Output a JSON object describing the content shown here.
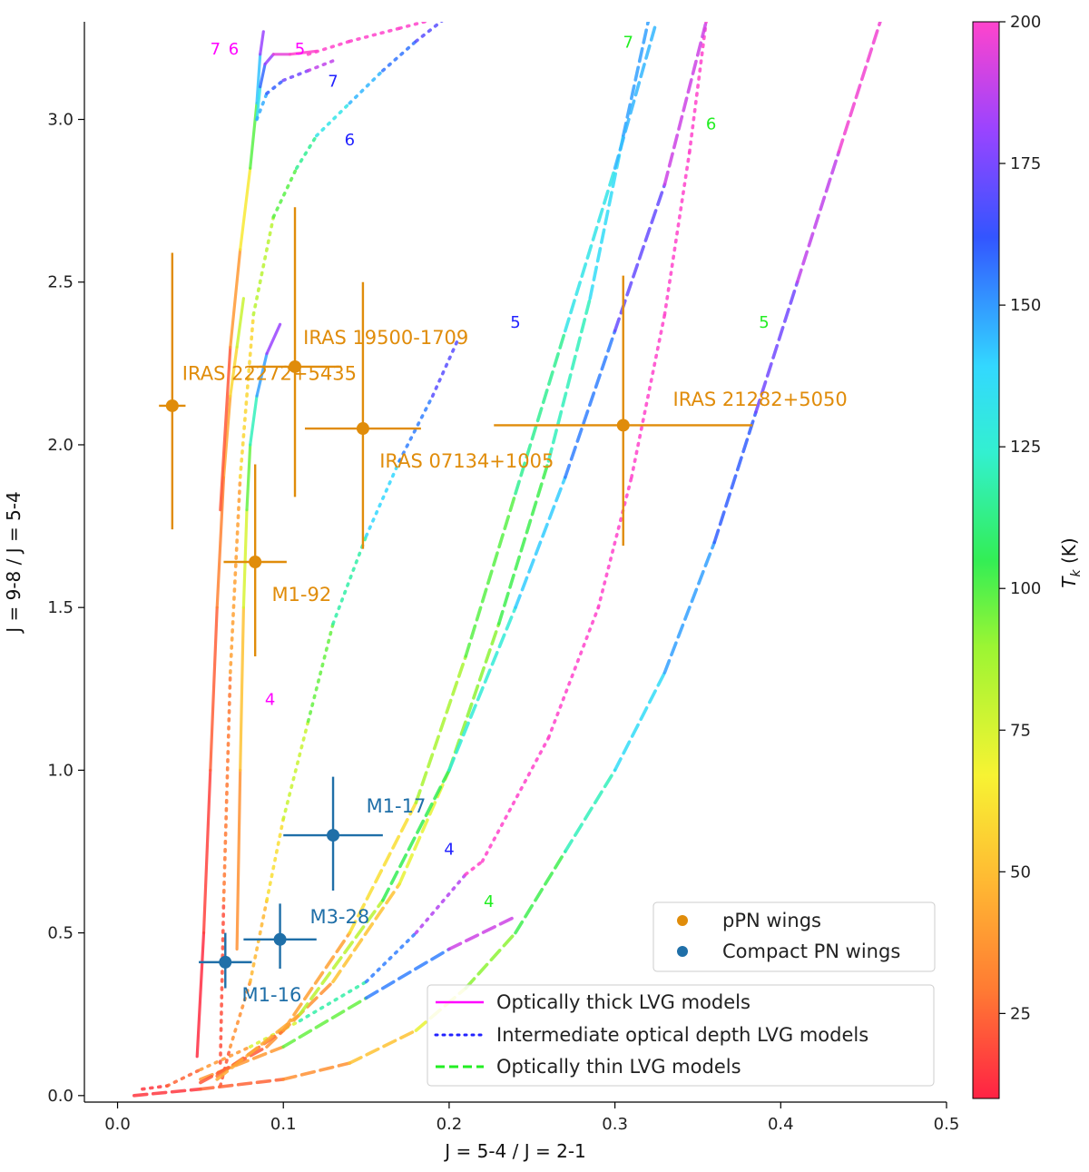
{
  "chart_data": {
    "type": "line",
    "xlabel": "J = 5-4 / J = 2-1",
    "ylabel": "J = 9-8 / J = 5-4",
    "xlim": [
      -0.02,
      0.5
    ],
    "ylim": [
      -0.02,
      3.3
    ],
    "xticks": [
      0.0,
      0.1,
      0.2,
      0.3,
      0.4,
      0.5
    ],
    "xtick_labels": [
      "0.0",
      "0.1",
      "0.2",
      "0.3",
      "0.4",
      "0.5"
    ],
    "yticks": [
      0.0,
      0.5,
      1.0,
      1.5,
      2.0,
      2.5,
      3.0
    ],
    "ytick_labels": [
      "0.0",
      "0.5",
      "1.0",
      "1.5",
      "2.0",
      "2.5",
      "3.0"
    ],
    "colorbar": {
      "label": "T_k (K)",
      "label_main": "T",
      "label_sub": "k",
      "label_unit": " (K)",
      "min": 10,
      "max": 200,
      "ticks": [
        25,
        50,
        75,
        100,
        125,
        150,
        175,
        200
      ],
      "tick_labels": [
        "25",
        "50",
        "75",
        "100",
        "125",
        "150",
        "175",
        "200"
      ]
    },
    "legend": {
      "location": "lower-right",
      "points": [
        {
          "label": "pPN wings",
          "color": "#E08C0A"
        },
        {
          "label": "Compact PN wings",
          "color": "#1F6FA8"
        }
      ],
      "lines": [
        {
          "label": "Optically thick LVG models",
          "style": "solid",
          "color": "#FF00FF"
        },
        {
          "label": "Intermediate optical depth LVG models",
          "style": "dotted",
          "color": "#2222FF"
        },
        {
          "label": "Optically thin LVG models",
          "style": "dashed",
          "color": "#22EE22"
        }
      ]
    },
    "series": [
      {
        "name": "Optically thick, log n = 4",
        "style": "solid",
        "points": [
          [
            0.048,
            0.12
          ],
          [
            0.052,
            0.5
          ],
          [
            0.056,
            1.0
          ],
          [
            0.06,
            1.5
          ],
          [
            0.064,
            1.9
          ],
          [
            0.068,
            2.15
          ],
          [
            0.072,
            2.3
          ],
          [
            0.076,
            2.45
          ]
        ],
        "temps": [
          10,
          15,
          20,
          28,
          38,
          50,
          65,
          80
        ]
      },
      {
        "name": "Optically thick, log n = 5",
        "style": "solid",
        "points": [
          [
            0.072,
            0.45
          ],
          [
            0.074,
            1.0
          ],
          [
            0.076,
            1.5
          ],
          [
            0.078,
            1.8
          ],
          [
            0.08,
            2.0
          ],
          [
            0.084,
            2.15
          ],
          [
            0.09,
            2.28
          ],
          [
            0.098,
            2.37
          ]
        ],
        "temps": [
          30,
          45,
          60,
          80,
          100,
          125,
          160,
          200
        ]
      },
      {
        "name": "Optically thick, log n = 6",
        "style": "solid",
        "points": [
          [
            0.062,
            1.8
          ],
          [
            0.068,
            2.3
          ],
          [
            0.074,
            2.6
          ],
          [
            0.08,
            2.85
          ],
          [
            0.084,
            3.05
          ],
          [
            0.086,
            3.2
          ],
          [
            0.088,
            3.27
          ]
        ],
        "temps": [
          15,
          30,
          50,
          75,
          110,
          160,
          200
        ]
      },
      {
        "name": "Optically thick, log n = 7",
        "style": "solid",
        "points": [
          [
            0.084,
            3.0
          ],
          [
            0.086,
            3.1
          ],
          [
            0.089,
            3.17
          ],
          [
            0.094,
            3.2
          ],
          [
            0.104,
            3.2
          ],
          [
            0.12,
            3.21
          ]
        ],
        "temps": [
          110,
          140,
          170,
          190,
          200,
          200
        ]
      },
      {
        "name": "Intermediate, log n = 4",
        "style": "dotted",
        "points": [
          [
            0.015,
            0.02
          ],
          [
            0.03,
            0.03
          ],
          [
            0.05,
            0.08
          ],
          [
            0.08,
            0.15
          ],
          [
            0.11,
            0.23
          ],
          [
            0.15,
            0.35
          ],
          [
            0.18,
            0.5
          ],
          [
            0.21,
            0.68
          ],
          [
            0.22,
            0.72
          ]
        ],
        "temps": [
          10,
          20,
          30,
          50,
          90,
          130,
          170,
          200,
          200
        ]
      },
      {
        "name": "Intermediate, log n = 5",
        "style": "dotted",
        "points": [
          [
            0.062,
            0.03
          ],
          [
            0.068,
            0.15
          ],
          [
            0.08,
            0.35
          ],
          [
            0.09,
            0.6
          ],
          [
            0.1,
            0.85
          ],
          [
            0.115,
            1.15
          ],
          [
            0.13,
            1.45
          ],
          [
            0.15,
            1.72
          ],
          [
            0.17,
            1.95
          ],
          [
            0.19,
            2.15
          ],
          [
            0.205,
            2.32
          ]
        ],
        "temps": [
          15,
          30,
          45,
          55,
          65,
          80,
          100,
          120,
          140,
          160,
          175
        ]
      },
      {
        "name": "Intermediate, log n = 6",
        "style": "dotted",
        "points": [
          [
            0.062,
            0.1
          ],
          [
            0.064,
            0.6
          ],
          [
            0.068,
            1.3
          ],
          [
            0.074,
            1.9
          ],
          [
            0.082,
            2.4
          ],
          [
            0.094,
            2.7
          ],
          [
            0.108,
            2.85
          ],
          [
            0.12,
            2.95
          ],
          [
            0.14,
            3.05
          ]
        ],
        "temps": [
          15,
          25,
          35,
          50,
          65,
          85,
          100,
          115,
          130
        ]
      },
      {
        "name": "Intermediate, log n = 7",
        "style": "dotted",
        "points": [
          [
            0.084,
            3.0
          ],
          [
            0.09,
            3.08
          ],
          [
            0.1,
            3.12
          ],
          [
            0.115,
            3.15
          ],
          [
            0.13,
            3.18
          ]
        ],
        "temps": [
          130,
          150,
          165,
          180,
          195
        ]
      },
      {
        "name": "Intermediate, upper, log n = 6",
        "style": "dotted",
        "points": [
          [
            0.14,
            3.05
          ],
          [
            0.16,
            3.15
          ],
          [
            0.18,
            3.24
          ],
          [
            0.2,
            3.32
          ]
        ],
        "temps": [
          130,
          145,
          160,
          175
        ]
      },
      {
        "name": "Intermediate, upper, log n = 5",
        "style": "dotted",
        "points": [
          [
            0.115,
            3.2
          ],
          [
            0.14,
            3.24
          ],
          [
            0.17,
            3.28
          ],
          [
            0.2,
            3.32
          ]
        ],
        "temps": [
          200,
          200,
          200,
          200
        ]
      },
      {
        "name": "Intermediate, high, log n = 4",
        "style": "dotted",
        "points": [
          [
            0.22,
            0.72
          ],
          [
            0.26,
            1.1
          ],
          [
            0.29,
            1.5
          ],
          [
            0.31,
            1.9
          ],
          [
            0.33,
            2.4
          ],
          [
            0.345,
            2.9
          ],
          [
            0.355,
            3.3
          ]
        ],
        "temps": [
          200,
          200,
          200,
          200,
          200,
          200,
          200
        ]
      },
      {
        "name": "Optically thin, log n = 4",
        "style": "dashed",
        "points": [
          [
            0.01,
            0.0
          ],
          [
            0.05,
            0.02
          ],
          [
            0.1,
            0.05
          ],
          [
            0.14,
            0.1
          ],
          [
            0.18,
            0.2
          ],
          [
            0.21,
            0.33
          ],
          [
            0.24,
            0.5
          ],
          [
            0.27,
            0.75
          ],
          [
            0.3,
            1.0
          ],
          [
            0.33,
            1.3
          ],
          [
            0.36,
            1.7
          ],
          [
            0.385,
            2.1
          ],
          [
            0.41,
            2.5
          ],
          [
            0.435,
            2.9
          ],
          [
            0.46,
            3.3
          ]
        ],
        "temps": [
          10,
          20,
          30,
          45,
          60,
          75,
          90,
          105,
          120,
          135,
          150,
          165,
          180,
          195,
          200
        ]
      },
      {
        "name": "Optically thin, log n = 4b",
        "style": "dashed",
        "points": [
          [
            0.05,
            0.05
          ],
          [
            0.1,
            0.15
          ],
          [
            0.15,
            0.3
          ],
          [
            0.2,
            0.45
          ],
          [
            0.24,
            0.55
          ]
        ],
        "temps": [
          20,
          60,
          120,
          180,
          200
        ]
      },
      {
        "name": "Optically thin, log n = 5",
        "style": "dashed",
        "points": [
          [
            0.05,
            0.04
          ],
          [
            0.09,
            0.15
          ],
          [
            0.13,
            0.35
          ],
          [
            0.17,
            0.65
          ],
          [
            0.2,
            1.0
          ],
          [
            0.23,
            1.45
          ],
          [
            0.26,
            1.95
          ],
          [
            0.285,
            2.45
          ],
          [
            0.305,
            2.95
          ],
          [
            0.32,
            3.3
          ]
        ],
        "temps": [
          15,
          30,
          45,
          60,
          75,
          90,
          105,
          120,
          135,
          150
        ]
      },
      {
        "name": "Optically thin, log n = 6",
        "style": "dashed",
        "points": [
          [
            0.06,
            0.06
          ],
          [
            0.1,
            0.2
          ],
          [
            0.14,
            0.5
          ],
          [
            0.18,
            0.9
          ],
          [
            0.21,
            1.35
          ],
          [
            0.24,
            1.85
          ],
          [
            0.27,
            2.35
          ],
          [
            0.3,
            2.85
          ],
          [
            0.325,
            3.3
          ]
        ],
        "temps": [
          20,
          35,
          50,
          70,
          85,
          100,
          115,
          130,
          145
        ]
      },
      {
        "name": "Optically thin, log n = 7",
        "style": "dashed",
        "points": [
          [
            0.06,
            0.05
          ],
          [
            0.11,
            0.25
          ],
          [
            0.16,
            0.6
          ],
          [
            0.2,
            1.0
          ],
          [
            0.24,
            1.5
          ],
          [
            0.27,
            1.9
          ],
          [
            0.3,
            2.35
          ],
          [
            0.33,
            2.8
          ],
          [
            0.355,
            3.3
          ]
        ],
        "temps": [
          30,
          60,
          90,
          110,
          125,
          140,
          160,
          180,
          200
        ]
      }
    ],
    "curve_labels": [
      {
        "text": "7",
        "x": 0.059,
        "y": 3.2,
        "color": "#FF00FF"
      },
      {
        "text": "6",
        "x": 0.07,
        "y": 3.2,
        "color": "#FF00FF"
      },
      {
        "text": "5",
        "x": 0.11,
        "y": 3.2,
        "color": "#FF00FF"
      },
      {
        "text": "4",
        "x": 0.092,
        "y": 1.2,
        "color": "#FF00FF"
      },
      {
        "text": "7",
        "x": 0.13,
        "y": 3.1,
        "color": "#2222FF"
      },
      {
        "text": "6",
        "x": 0.14,
        "y": 2.92,
        "color": "#2222FF"
      },
      {
        "text": "5",
        "x": 0.24,
        "y": 2.36,
        "color": "#2222FF"
      },
      {
        "text": "4",
        "x": 0.2,
        "y": 0.74,
        "color": "#2222FF"
      },
      {
        "text": "7",
        "x": 0.308,
        "y": 3.22,
        "color": "#22EE22"
      },
      {
        "text": "6",
        "x": 0.358,
        "y": 2.97,
        "color": "#22EE22"
      },
      {
        "text": "5",
        "x": 0.39,
        "y": 2.36,
        "color": "#22EE22"
      },
      {
        "text": "4",
        "x": 0.224,
        "y": 0.58,
        "color": "#22EE22"
      }
    ],
    "observations": [
      {
        "label": "IRAS 22272+5435",
        "group": "pPN wings",
        "x": 0.033,
        "y": 2.12,
        "xerr": 0.008,
        "yerr_low": 0.38,
        "yerr_high": 0.47,
        "label_dx": 0.006,
        "label_dy": 0.08
      },
      {
        "label": "IRAS 19500-1709",
        "group": "pPN wings",
        "x": 0.107,
        "y": 2.24,
        "xerr": 0.028,
        "yerr_low": 0.4,
        "yerr_high": 0.49,
        "label_dx": 0.005,
        "label_dy": 0.07
      },
      {
        "label": "IRAS 07134+1005",
        "group": "pPN wings",
        "x": 0.148,
        "y": 2.05,
        "xerr": 0.035,
        "yerr_low": 0.37,
        "yerr_high": 0.45,
        "label_dx": 0.01,
        "label_dy": -0.12
      },
      {
        "label": "IRAS 21282+5050",
        "group": "pPN wings",
        "x": 0.305,
        "y": 2.06,
        "xerr": 0.078,
        "yerr_low": 0.37,
        "yerr_high": 0.46,
        "label_dx": 0.03,
        "label_dy": 0.06
      },
      {
        "label": "M1-92",
        "group": "pPN wings",
        "x": 0.083,
        "y": 1.64,
        "xerr": 0.019,
        "yerr_low": 0.29,
        "yerr_high": 0.3,
        "label_dx": 0.01,
        "label_dy": -0.12
      },
      {
        "label": "M1-17",
        "group": "Compact PN wings",
        "x": 0.13,
        "y": 0.8,
        "xerr": 0.03,
        "yerr_low": 0.17,
        "yerr_high": 0.18,
        "label_dx": 0.02,
        "label_dy": 0.07
      },
      {
        "label": "M3-28",
        "group": "Compact PN wings",
        "x": 0.098,
        "y": 0.48,
        "xerr": 0.022,
        "yerr_low": 0.09,
        "yerr_high": 0.11,
        "label_dx": 0.018,
        "label_dy": 0.05
      },
      {
        "label": "M1-16",
        "group": "Compact PN wings",
        "x": 0.065,
        "y": 0.41,
        "xerr": 0.016,
        "yerr_low": 0.08,
        "yerr_high": 0.09,
        "label_dx": 0.01,
        "label_dy": -0.12
      }
    ]
  }
}
